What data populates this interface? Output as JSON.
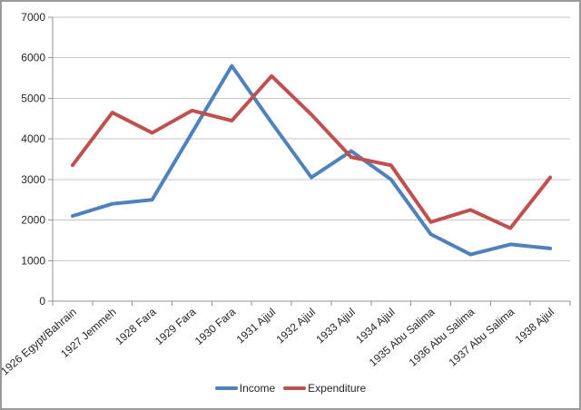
{
  "window": {
    "background": "#ffffff",
    "border_color": "#9a9a9a"
  },
  "chart_data": {
    "type": "line",
    "title": "",
    "categories": [
      "1926 Egypt/Bahrain",
      "1927 Jemmeh",
      "1928 Fara",
      "1929 Fara",
      "1930 Fara",
      "1931 Ajjul",
      "1932 Ajjul",
      "1933 Ajjul",
      "1934 Ajjul",
      "1935 Abu Salima",
      "1936 Abu Salima",
      "1937 Abu Salima",
      "1938 Ajjul"
    ],
    "series": [
      {
        "name": "Income",
        "color": "#4F81BD",
        "values": [
          2100,
          2400,
          2500,
          4150,
          5800,
          4400,
          3050,
          3700,
          3000,
          1650,
          1150,
          1400,
          1300
        ]
      },
      {
        "name": "Expenditure",
        "color": "#C0504D",
        "values": [
          3350,
          4650,
          4150,
          4700,
          4450,
          5550,
          4600,
          3550,
          3350,
          1950,
          2250,
          1800,
          3050
        ]
      }
    ],
    "xlabel": "",
    "ylabel": "",
    "ylim": [
      0,
      7000
    ],
    "y_tick_labels": [
      0,
      1000,
      2000,
      3000,
      4000,
      5000,
      6000,
      7000
    ],
    "grid": true,
    "legend_position": "bottom",
    "style": {
      "gridline_color": "#c6c6c6",
      "axis_color": "#919191",
      "text_color": "#262626",
      "line_width": 4,
      "x_label_rotation_deg": -41
    }
  }
}
